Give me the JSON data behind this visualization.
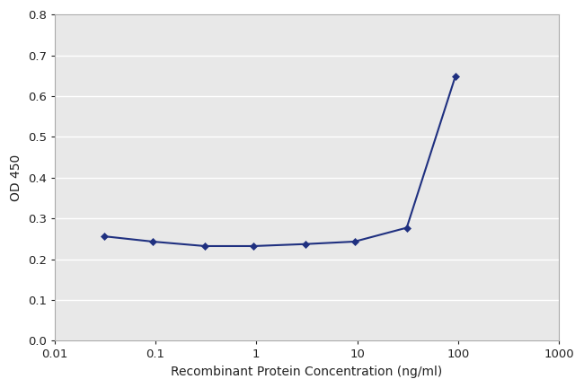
{
  "x_values": [
    0.031,
    0.094,
    0.31,
    0.94,
    3.1,
    9.4,
    31,
    94
  ],
  "y_values": [
    0.256,
    0.243,
    0.232,
    0.232,
    0.237,
    0.243,
    0.277,
    0.648
  ],
  "line_color": "#1F3080",
  "marker": "D",
  "marker_size": 4.5,
  "xlabel": "Recombinant Protein Concentration (ng/ml)",
  "ylabel": "OD 450",
  "xlim": [
    0.01,
    1000
  ],
  "ylim": [
    0.0,
    0.8
  ],
  "yticks": [
    0.0,
    0.1,
    0.2,
    0.3,
    0.4,
    0.5,
    0.6,
    0.7,
    0.8
  ],
  "xticks": [
    0.01,
    0.1,
    1,
    10,
    100,
    1000
  ],
  "figure_bg": "#ffffff",
  "plot_bg": "#e8e8e8",
  "grid_color": "#ffffff",
  "spine_color": "#aaaaaa",
  "xlabel_fontsize": 10,
  "ylabel_fontsize": 10,
  "tick_fontsize": 9.5,
  "line_width": 1.5
}
